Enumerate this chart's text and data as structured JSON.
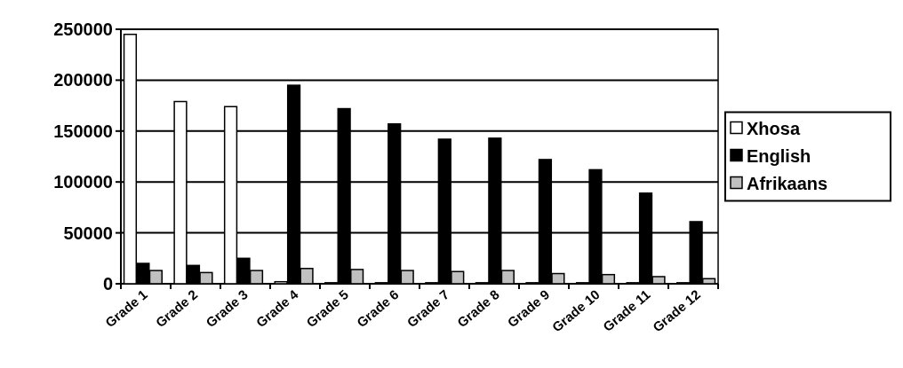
{
  "chart_data": {
    "type": "bar",
    "categories": [
      "Grade 1",
      "Grade 2",
      "Grade 3",
      "Grade 4",
      "Grade 5",
      "Grade 6",
      "Grade 7",
      "Grade 8",
      "Grade 9",
      "Grade 10",
      "Grade 11",
      "Grade 12"
    ],
    "series": [
      {
        "name": "Xhosa",
        "color": "#ffffff",
        "values": [
          245000,
          179000,
          174000,
          2000,
          1000,
          1000,
          1000,
          1000,
          1000,
          1000,
          1000,
          1000
        ]
      },
      {
        "name": "English",
        "color": "#000000",
        "values": [
          20000,
          18000,
          25000,
          195000,
          172000,
          157000,
          142000,
          143000,
          122000,
          112000,
          89000,
          61000
        ]
      },
      {
        "name": "Afrikaans",
        "color": "#c0c0c0",
        "values": [
          13000,
          11000,
          13000,
          15000,
          14000,
          13000,
          12000,
          13000,
          10000,
          9000,
          7000,
          5000
        ]
      }
    ],
    "ylim": [
      0,
      250000
    ],
    "yticks": [
      0,
      50000,
      100000,
      150000,
      200000,
      250000
    ],
    "grid": "y",
    "legend": "right"
  }
}
